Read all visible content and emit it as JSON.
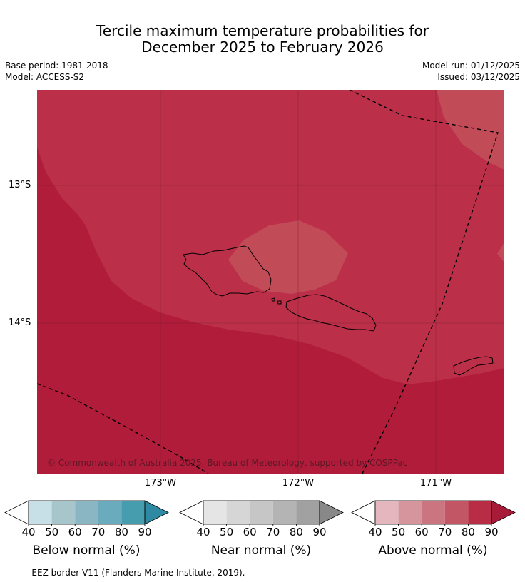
{
  "title": {
    "line1": "Tercile maximum temperature probabilities for",
    "line2": "December 2025 to February 2026"
  },
  "meta": {
    "base_period": "Base period: 1981-2018",
    "model": "Model: ACCESS-S2",
    "model_run": "Model run: 01/12/2025",
    "issued": "Issued: 03/12/2025"
  },
  "map": {
    "copyright": "© Commonwealth of Australia 2025, Bureau of Meteorology, supported by COSPPac",
    "lat_labels": [
      "13°S",
      "14°S"
    ],
    "lon_labels": [
      "173°W",
      "172°W",
      "171°W"
    ],
    "colors": {
      "above_90": "#b01c3a",
      "above_80": "#bc2f49",
      "above_70": "#c24b58",
      "land_outline": "#000000"
    }
  },
  "colorbars": [
    {
      "label": "Below normal (%)",
      "ticks": [
        "40",
        "50",
        "60",
        "70",
        "80",
        "90"
      ],
      "colors": [
        "#c7dfe6",
        "#a6c6cc",
        "#89b6c2",
        "#6aacbd",
        "#459dae",
        "#2d8aa2"
      ]
    },
    {
      "label": "Near normal (%)",
      "ticks": [
        "40",
        "50",
        "60",
        "70",
        "80",
        "90"
      ],
      "colors": [
        "#e5e5e5",
        "#d6d6d6",
        "#c6c6c6",
        "#b4b4b4",
        "#a1a1a1",
        "#888888"
      ]
    },
    {
      "label": "Above normal (%)",
      "ticks": [
        "40",
        "50",
        "60",
        "70",
        "80",
        "90"
      ],
      "colors": [
        "#e3b7bd",
        "#d6959d",
        "#cb7580",
        "#c35664",
        "#b92c45",
        "#a71a38"
      ]
    }
  ],
  "footer": "--  --  -- EEZ border V11 (Flanders Marine Institute, 2019)."
}
